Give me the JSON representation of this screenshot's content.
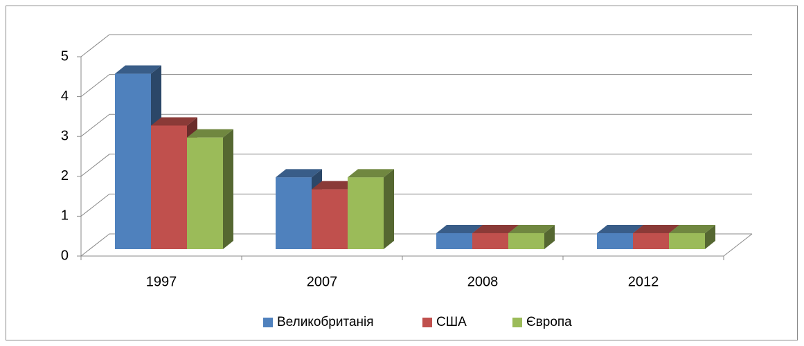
{
  "chart_data": {
    "type": "bar3d",
    "categories": [
      "1997",
      "2007",
      "2008",
      "2012"
    ],
    "series": [
      {
        "name": "Великобританія",
        "color": "#4f81bd",
        "values": [
          4.4,
          1.8,
          0.4,
          0.4
        ]
      },
      {
        "name": "США",
        "color": "#c0504d",
        "values": [
          3.1,
          1.5,
          0.4,
          0.4
        ]
      },
      {
        "name": "Європа",
        "color": "#9bbb59",
        "values": [
          2.8,
          1.8,
          0.4,
          0.4
        ]
      }
    ],
    "ylim": [
      0,
      5
    ],
    "yticks": [
      0,
      1,
      2,
      3,
      4,
      5
    ],
    "grid": true,
    "legend": "bottom"
  }
}
